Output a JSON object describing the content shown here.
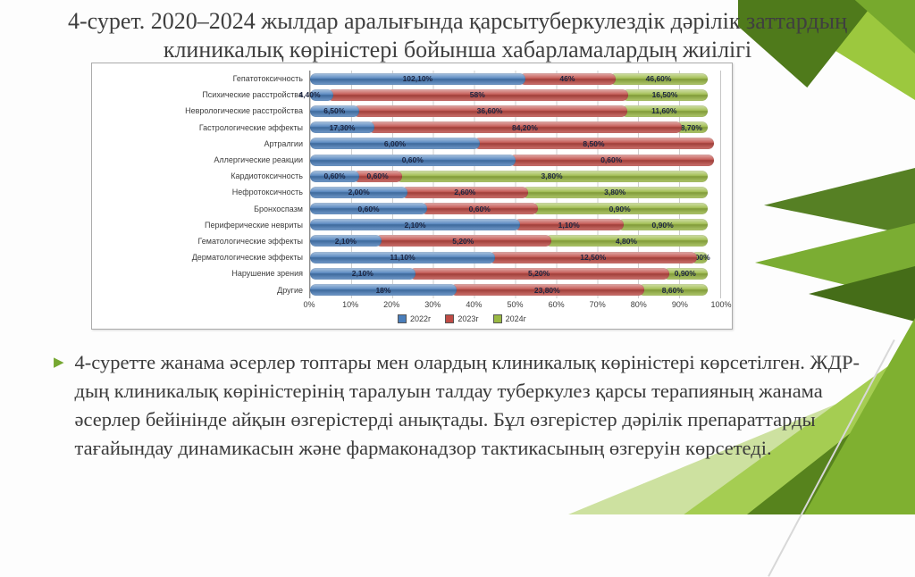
{
  "slide": {
    "title": "4-сурет. 2020–2024 жылдар аралығында қарсытуберкулездік дәрілік заттардың клиникалық көріністері бойынша хабарламалардың жиілігі",
    "body_text": "4-суретте жанама әсерлер топтары мен олардың клиникалық көріністері көрсетілген. ЖДР-дың клиникалық көріністерінің таралуын талдау туберкулез қарсы терапияның жанама әсерлер бейінінде айқын өзгерістерді анықтады. Бұл өзгерістер дәрілік препараттарды тағайындау динамикасын және фармаконадзор тактикасының өзгеруін көрсетеді.",
    "bullet_icon": "▶"
  },
  "chart_data": {
    "type": "bar",
    "variant": "horizontal-100%-stacked",
    "title": "",
    "xlabel": "",
    "ylabel": "",
    "grid": true,
    "legend_position": "bottom",
    "xlim": [
      "0%",
      "100%"
    ],
    "x_ticks": [
      "0%",
      "10%",
      "20%",
      "30%",
      "40%",
      "50%",
      "60%",
      "70%",
      "80%",
      "90%",
      "100%"
    ],
    "label_color": "#1b2440",
    "categories": [
      "Гепатотоксичность",
      "Психические расстройства",
      "Неврологические расстройства",
      "Гастрологические эффекты",
      "Артралгии",
      "Аллергические реакции",
      "Кардиотоксичность",
      "Нефротоксичность",
      "Бронхоспазм",
      "Периферические невриты",
      "Гематологические эффекты",
      "Дерматологические эффекты",
      "Нарушение зрения",
      "Другие"
    ],
    "series": [
      {
        "name": "2022г",
        "color": "#4a7ebb",
        "values": [
          102.1,
          4.4,
          6.5,
          17.3,
          6.0,
          0.6,
          0.6,
          2.0,
          0.6,
          2.1,
          2.1,
          11.1,
          2.1,
          18
        ],
        "labels": [
          "102,10%",
          "4,40%",
          "6,50%",
          "17,30%",
          "6,00%",
          "0,60%",
          "0,60%",
          "2,00%",
          "0,60%",
          "2,10%",
          "2,10%",
          "11,10%",
          "2,10%",
          "18%"
        ]
      },
      {
        "name": "2023г",
        "color": "#bf4b45",
        "values": [
          46,
          58,
          36.6,
          84.2,
          8.5,
          0.6,
          0.6,
          2.6,
          0.6,
          1.1,
          5.2,
          12.5,
          5.2,
          23.8
        ],
        "labels": [
          "46%",
          "58%",
          "36,60%",
          "84,20%",
          "8,50%",
          "0,60%",
          "0,60%",
          "2,60%",
          "0,60%",
          "1,10%",
          "5,20%",
          "12,50%",
          "5,20%",
          "23,80%"
        ]
      },
      {
        "name": "2024г",
        "color": "#9ab944",
        "values": [
          46.6,
          16.5,
          11.6,
          8.7,
          null,
          null,
          3.8,
          3.8,
          0.9,
          0.9,
          4.8,
          1.0,
          0.9,
          8.6
        ],
        "labels": [
          "46,60%",
          "16,50%",
          "11,60%",
          "8,70%",
          "",
          "",
          "3,80%",
          "3,80%",
          "0,90%",
          "0,90%",
          "4,80%",
          "1,00%",
          "0,90%",
          "8,60%"
        ]
      }
    ]
  }
}
